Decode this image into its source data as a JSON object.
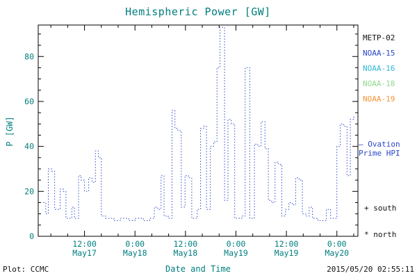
{
  "title": "Hemispheric Power [GW]",
  "colors": {
    "axis_text": "#007d7d",
    "frame": "#000000",
    "trace_blue": "#2845c8",
    "black": "#111111"
  },
  "legend": {
    "items": [
      {
        "label": "METP-02",
        "color": "#111111"
      },
      {
        "label": "NOAA-15",
        "color": "#2845c8"
      },
      {
        "label": "NOAA-16",
        "color": "#2fb7d7"
      },
      {
        "label": "NOAA-18",
        "color": "#8fd98f"
      },
      {
        "label": "NOAA-19",
        "color": "#f59433"
      }
    ]
  },
  "annotations": {
    "ovation_line1": "– Ovation",
    "ovation_line2": "Prime HPI",
    "ovation_color": "#2845c8",
    "south": "+ south",
    "north": "* north"
  },
  "footer": {
    "plot_credit": "Plot: CCMC",
    "xaxis_title": "Date and Time",
    "timestamp": "2015/05/20 02:55:11"
  },
  "chart_data": {
    "type": "line",
    "title": "Hemispheric Power [GW]",
    "xlabel": "Date and Time",
    "ylabel": "P [GW]",
    "ylim": [
      0,
      94
    ],
    "xlim_hours": [
      1,
      77
    ],
    "x_unit": "hours since May 17 00:00",
    "grid": false,
    "line_style": "dotted",
    "y_ticks": [
      0,
      20,
      40,
      60,
      80
    ],
    "y_minor_step": 5,
    "x_minor_step": 4,
    "x_ticks": [
      {
        "hour": 12,
        "time": "12:00",
        "date": "May17"
      },
      {
        "hour": 24,
        "time": "0:00",
        "date": "May18"
      },
      {
        "hour": 36,
        "time": "12:00",
        "date": "May18"
      },
      {
        "hour": 48,
        "time": "0:00",
        "date": "May19"
      },
      {
        "hour": 60,
        "time": "12:00",
        "date": "May19"
      },
      {
        "hour": 72,
        "time": "0:00",
        "date": "May20"
      }
    ],
    "series": [
      {
        "name": "Ovation Prime HPI",
        "color": "#2845c8",
        "style": "dotted",
        "points": [
          [
            2.2,
            15
          ],
          [
            2.8,
            15
          ],
          [
            2.8,
            10
          ],
          [
            3.4,
            10
          ],
          [
            3.4,
            30
          ],
          [
            4.2,
            30
          ],
          [
            4.2,
            29
          ],
          [
            4.9,
            29
          ],
          [
            4.9,
            12
          ],
          [
            6.2,
            12
          ],
          [
            6.2,
            21
          ],
          [
            7.0,
            21
          ],
          [
            7.0,
            20
          ],
          [
            7.6,
            20
          ],
          [
            7.6,
            8
          ],
          [
            9.0,
            8
          ],
          [
            9.0,
            13
          ],
          [
            9.6,
            13
          ],
          [
            9.6,
            8
          ],
          [
            10.6,
            8
          ],
          [
            10.6,
            27
          ],
          [
            11.2,
            27
          ],
          [
            11.2,
            25
          ],
          [
            12.0,
            25
          ],
          [
            12.0,
            20
          ],
          [
            13.0,
            20
          ],
          [
            13.0,
            26
          ],
          [
            13.8,
            26
          ],
          [
            13.8,
            24
          ],
          [
            14.6,
            24
          ],
          [
            14.6,
            38
          ],
          [
            15.3,
            38
          ],
          [
            15.3,
            35
          ],
          [
            16.0,
            35
          ],
          [
            16.0,
            9
          ],
          [
            17.0,
            9
          ],
          [
            17.0,
            8
          ],
          [
            19.0,
            8
          ],
          [
            19.0,
            7
          ],
          [
            20.5,
            7
          ],
          [
            20.5,
            8
          ],
          [
            22.5,
            8
          ],
          [
            22.5,
            7
          ],
          [
            24.0,
            7
          ],
          [
            24.0,
            8
          ],
          [
            26.0,
            8
          ],
          [
            26.0,
            7
          ],
          [
            27.5,
            7
          ],
          [
            27.5,
            8
          ],
          [
            28.6,
            8
          ],
          [
            28.6,
            13
          ],
          [
            29.4,
            13
          ],
          [
            29.4,
            12
          ],
          [
            30.2,
            12
          ],
          [
            30.2,
            27
          ],
          [
            30.9,
            27
          ],
          [
            30.9,
            9
          ],
          [
            31.9,
            9
          ],
          [
            31.9,
            8
          ],
          [
            32.8,
            8
          ],
          [
            32.8,
            56
          ],
          [
            33.5,
            56
          ],
          [
            33.5,
            48
          ],
          [
            34.2,
            48
          ],
          [
            34.2,
            47
          ],
          [
            35.0,
            47
          ],
          [
            35.0,
            13
          ],
          [
            35.9,
            13
          ],
          [
            35.9,
            27
          ],
          [
            36.7,
            27
          ],
          [
            36.7,
            26
          ],
          [
            37.5,
            26
          ],
          [
            37.5,
            8
          ],
          [
            38.8,
            8
          ],
          [
            38.8,
            12
          ],
          [
            39.6,
            12
          ],
          [
            39.6,
            48
          ],
          [
            40.3,
            48
          ],
          [
            40.3,
            49
          ],
          [
            41.0,
            49
          ],
          [
            41.0,
            12
          ],
          [
            41.9,
            12
          ],
          [
            41.9,
            40
          ],
          [
            42.7,
            40
          ],
          [
            42.7,
            42
          ],
          [
            43.5,
            42
          ],
          [
            43.5,
            75
          ],
          [
            44.2,
            75
          ],
          [
            44.2,
            93
          ],
          [
            45.3,
            93
          ],
          [
            45.3,
            16
          ],
          [
            46.1,
            16
          ],
          [
            46.1,
            52
          ],
          [
            46.9,
            52
          ],
          [
            46.9,
            50
          ],
          [
            47.7,
            50
          ],
          [
            47.7,
            8
          ],
          [
            49.4,
            8
          ],
          [
            49.4,
            9
          ],
          [
            50.2,
            9
          ],
          [
            50.2,
            75
          ],
          [
            51.3,
            75
          ],
          [
            51.3,
            8
          ],
          [
            52.4,
            8
          ],
          [
            52.4,
            41
          ],
          [
            53.2,
            41
          ],
          [
            53.2,
            40
          ],
          [
            54.0,
            40
          ],
          [
            54.0,
            51
          ],
          [
            54.9,
            51
          ],
          [
            54.9,
            39
          ],
          [
            55.7,
            39
          ],
          [
            55.7,
            16
          ],
          [
            56.5,
            16
          ],
          [
            56.5,
            15
          ],
          [
            57.3,
            15
          ],
          [
            57.3,
            33
          ],
          [
            58.1,
            33
          ],
          [
            58.1,
            32
          ],
          [
            58.9,
            32
          ],
          [
            58.9,
            9
          ],
          [
            59.8,
            9
          ],
          [
            59.8,
            12
          ],
          [
            60.6,
            12
          ],
          [
            60.6,
            15
          ],
          [
            61.4,
            15
          ],
          [
            61.4,
            14
          ],
          [
            62.2,
            14
          ],
          [
            62.2,
            26
          ],
          [
            63.0,
            26
          ],
          [
            63.0,
            25
          ],
          [
            63.8,
            25
          ],
          [
            63.8,
            10
          ],
          [
            64.6,
            10
          ],
          [
            64.6,
            9
          ],
          [
            65.4,
            9
          ],
          [
            65.4,
            13
          ],
          [
            66.2,
            13
          ],
          [
            66.2,
            8
          ],
          [
            67.5,
            8
          ],
          [
            67.5,
            7
          ],
          [
            69.5,
            7
          ],
          [
            69.5,
            12
          ],
          [
            70.5,
            12
          ],
          [
            70.5,
            8
          ],
          [
            72.0,
            8
          ],
          [
            72.0,
            40
          ],
          [
            72.8,
            40
          ],
          [
            72.8,
            50
          ],
          [
            73.6,
            50
          ],
          [
            73.6,
            49
          ],
          [
            74.4,
            49
          ],
          [
            74.4,
            27
          ],
          [
            75.2,
            27
          ],
          [
            75.2,
            52
          ],
          [
            76.0,
            52
          ],
          [
            76.0,
            53
          ],
          [
            76.5,
            53
          ]
        ]
      }
    ]
  }
}
